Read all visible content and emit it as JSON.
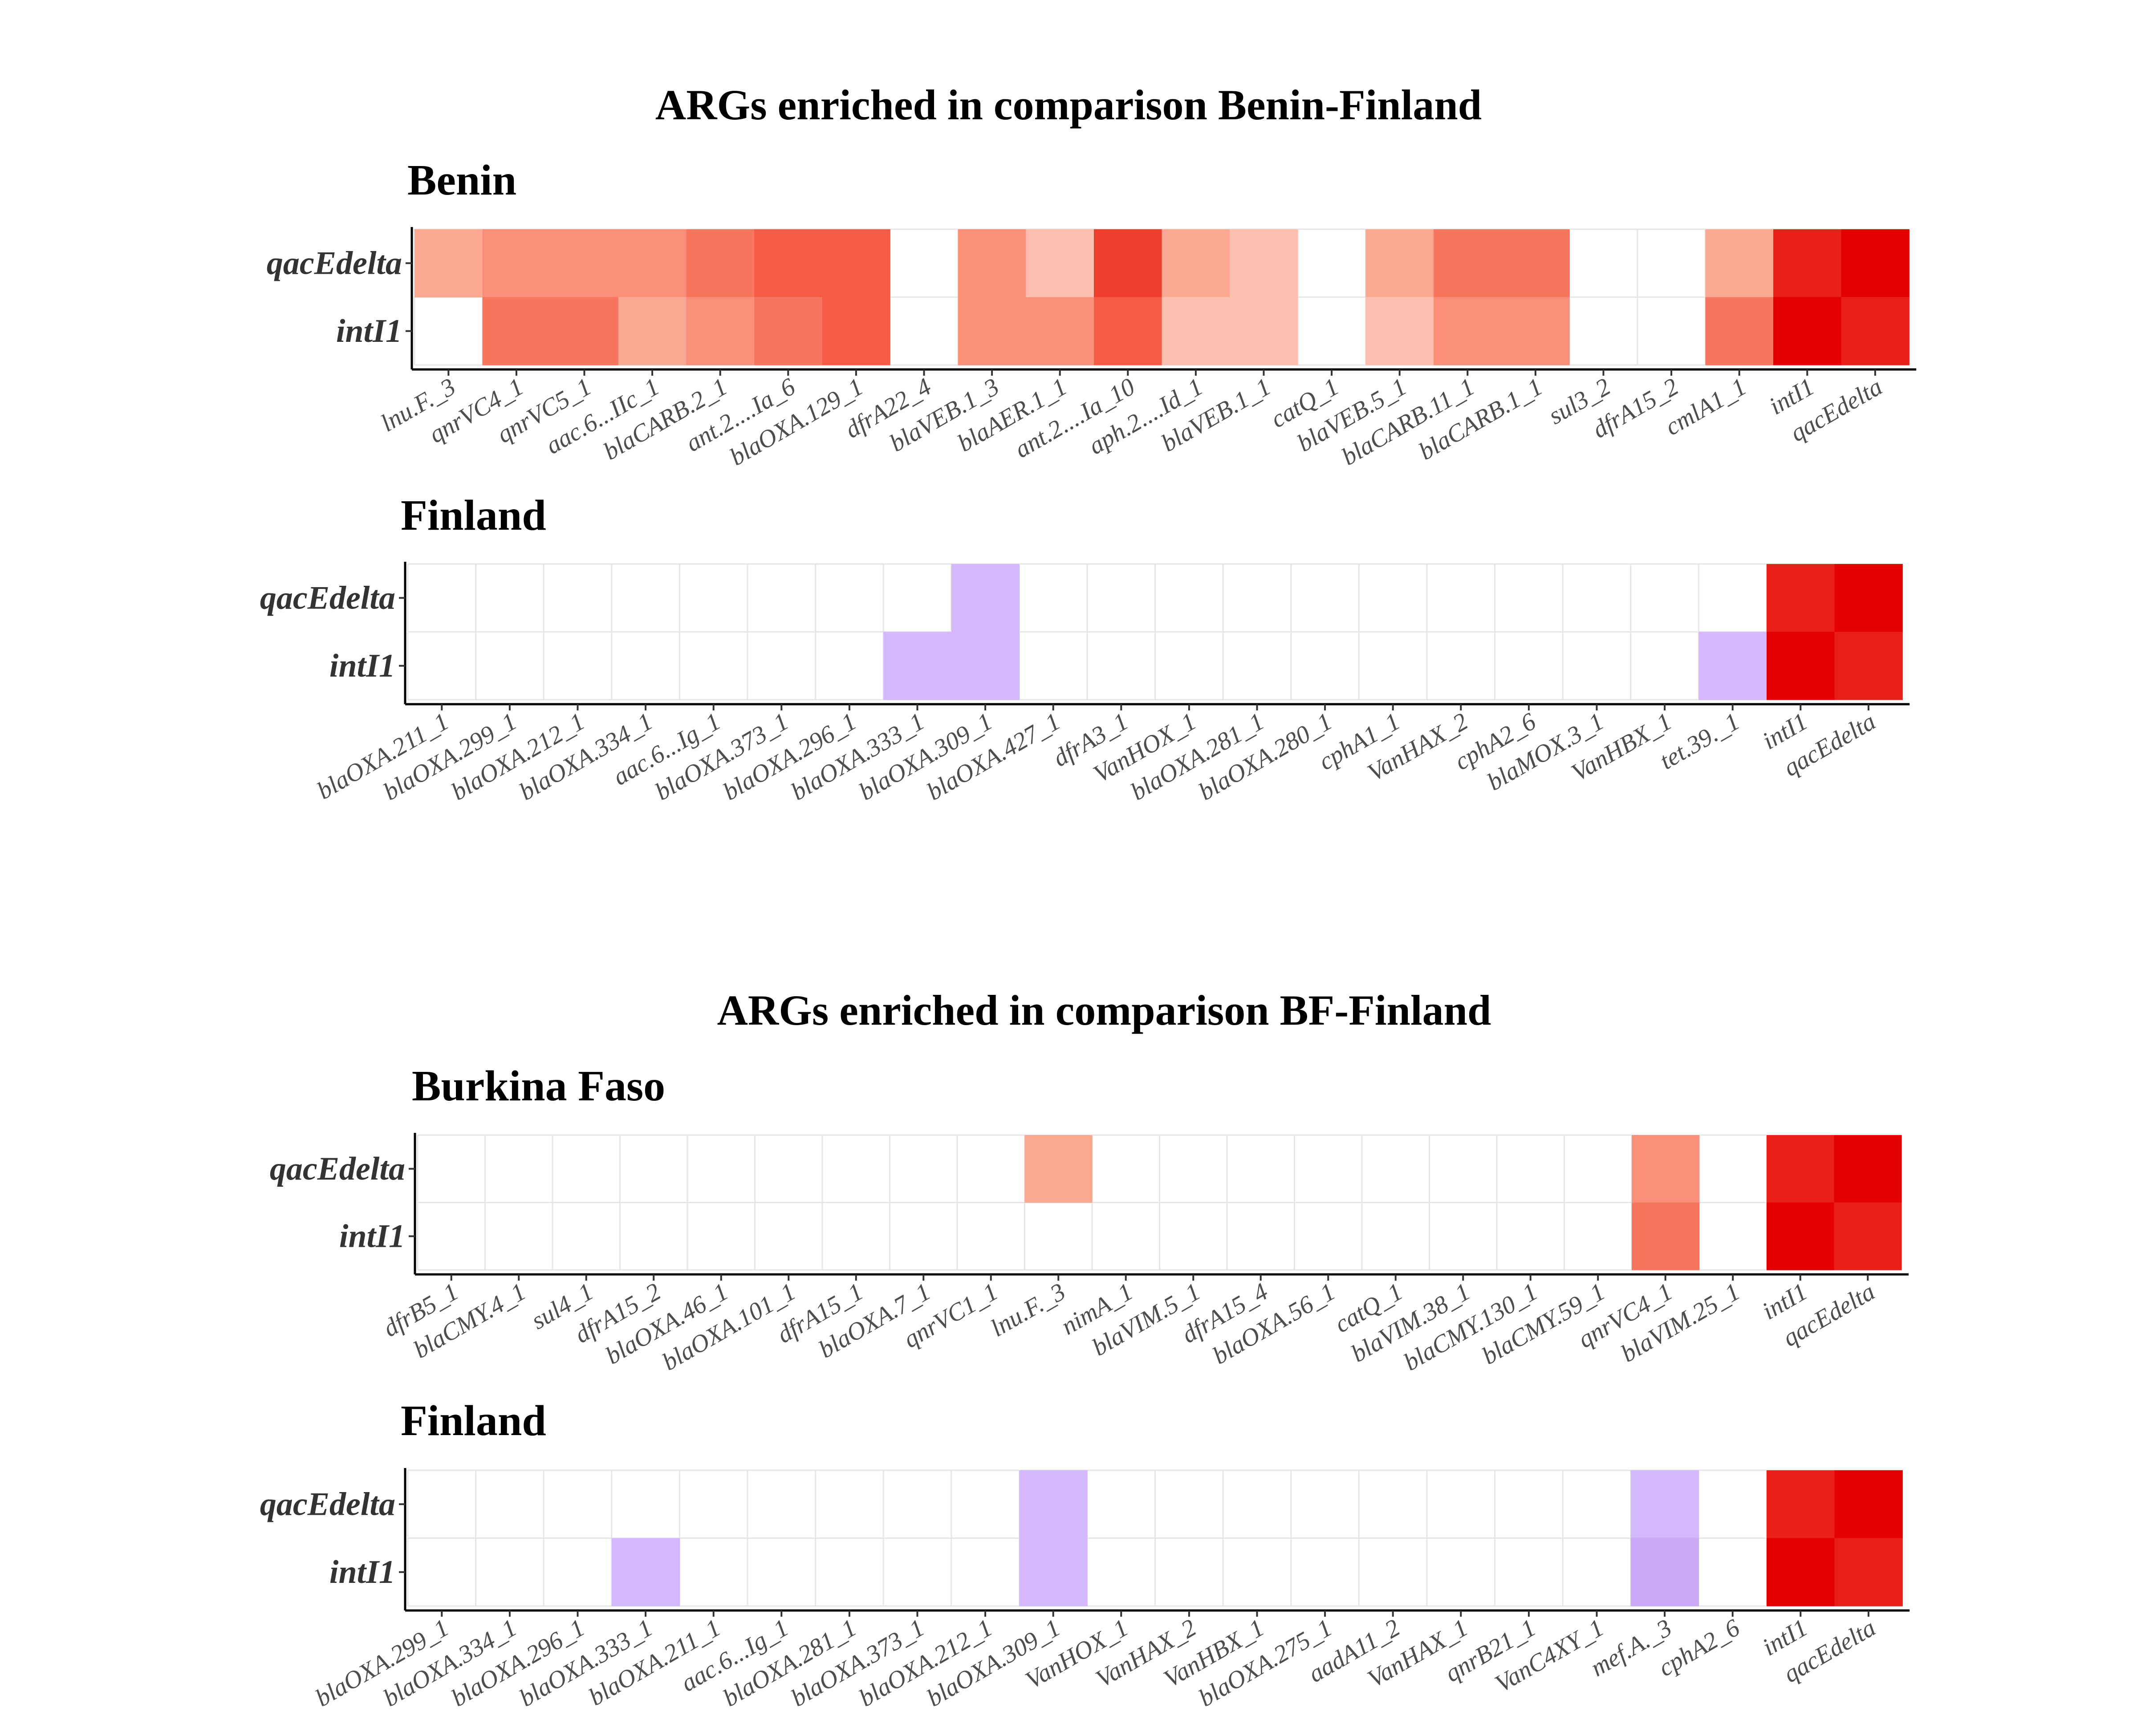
{
  "palette": {
    "red": [
      "#ffffff",
      "#fdc0b0",
      "#fba892",
      "#f98f78",
      "#f7765f",
      "#f45c45",
      "#f03e2e",
      "#ea1f1a",
      "#e40000"
    ],
    "purple": [
      "#ffffff",
      "#d4b8fb",
      "#c9a8f8"
    ]
  },
  "chart_data": [
    {
      "type": "heatmap",
      "title": "ARGs enriched in comparison Benin-Finland",
      "subtitle": "Benin",
      "palette": "red",
      "y": [
        "qacEdelta",
        "intI1"
      ],
      "x": [
        "lnu.F._3",
        "qnrVC4_1",
        "qnrVC5_1",
        "aac.6...IIc_1",
        "blaCARB.2_1",
        "ant.2....Ia_6",
        "blaOXA.129_1",
        "dfrA22_4",
        "blaVEB.1_3",
        "blaAER.1_1",
        "ant.2....Ia_10",
        "aph.2....Id_1",
        "blaVEB.1_1",
        "catQ_1",
        "blaVEB.5_1",
        "blaCARB.11_1",
        "blaCARB.1_1",
        "sul3_2",
        "dfrA15_2",
        "cmlA1_1",
        "intI1",
        "qacEdelta"
      ],
      "values": [
        [
          2,
          3,
          3,
          3,
          4,
          5,
          5,
          0,
          3,
          1,
          6,
          2,
          1,
          0,
          2,
          4,
          4,
          0,
          0,
          2,
          7,
          8
        ],
        [
          0,
          4,
          4,
          2,
          3,
          4,
          5,
          0,
          3,
          3,
          5,
          1,
          1,
          0,
          1,
          3,
          3,
          0,
          0,
          4,
          8,
          7
        ]
      ]
    },
    {
      "type": "heatmap",
      "subtitle": "Finland",
      "palette": "purple",
      "y": [
        "qacEdelta",
        "intI1"
      ],
      "x": [
        "blaOXA.211_1",
        "blaOXA.299_1",
        "blaOXA.212_1",
        "blaOXA.334_1",
        "aac.6...Ig_1",
        "blaOXA.373_1",
        "blaOXA.296_1",
        "blaOXA.333_1",
        "blaOXA.309_1",
        "blaOXA.427_1",
        "dfrA3_1",
        "VanHOX_1",
        "blaOXA.281_1",
        "blaOXA.280_1",
        "cphA1_1",
        "VanHAX_2",
        "cphA2_6",
        "blaMOX.3_1",
        "VanHBX_1",
        "tet.39._1",
        "intI1",
        "qacEdelta"
      ],
      "values": [
        [
          0,
          0,
          0,
          0,
          0,
          0,
          0,
          0,
          1,
          0,
          0,
          0,
          0,
          0,
          0,
          0,
          0,
          0,
          0,
          0,
          7,
          8
        ],
        [
          0,
          0,
          0,
          0,
          0,
          0,
          0,
          1,
          1,
          0,
          0,
          0,
          0,
          0,
          0,
          0,
          0,
          0,
          0,
          1,
          8,
          7
        ]
      ],
      "highlight": {
        "intI1": [
          7,
          8
        ],
        "qacEdelta": [
          7,
          8
        ]
      }
    },
    {
      "type": "heatmap",
      "title": "ARGs enriched in comparison BF-Finland",
      "subtitle": "Burkina Faso",
      "palette": "red",
      "y": [
        "qacEdelta",
        "intI1"
      ],
      "x": [
        "dfrB5_1",
        "blaCMY.4_1",
        "sul4_1",
        "dfrA15_2",
        "blaOXA.46_1",
        "blaOXA.101_1",
        "dfrA15_1",
        "blaOXA.7_1",
        "qnrVC1_1",
        "lnu.F._3",
        "nimA_1",
        "blaVIM.5_1",
        "dfrA15_4",
        "blaOXA.56_1",
        "catQ_1",
        "blaVIM.38_1",
        "blaCMY.130_1",
        "blaCMY.59_1",
        "qnrVC4_1",
        "blaVIM.25_1",
        "intI1",
        "qacEdelta"
      ],
      "values": [
        [
          0,
          0,
          0,
          0,
          0,
          0,
          0,
          0,
          0,
          2,
          0,
          0,
          0,
          0,
          0,
          0,
          0,
          0,
          3,
          0,
          7,
          8
        ],
        [
          0,
          0,
          0,
          0,
          0,
          0,
          0,
          0,
          0,
          0,
          0,
          0,
          0,
          0,
          0,
          0,
          0,
          0,
          4,
          0,
          8,
          7
        ]
      ]
    },
    {
      "type": "heatmap",
      "subtitle": "Finland",
      "palette": "purple",
      "y": [
        "qacEdelta",
        "intI1"
      ],
      "x": [
        "blaOXA.299_1",
        "blaOXA.334_1",
        "blaOXA.296_1",
        "blaOXA.333_1",
        "blaOXA.211_1",
        "aac.6...Ig_1",
        "blaOXA.281_1",
        "blaOXA.373_1",
        "blaOXA.212_1",
        "blaOXA.309_1",
        "VanHOX_1",
        "VanHAX_2",
        "VanHBX_1",
        "blaOXA.275_1",
        "aadA11_2",
        "VanHAX_1",
        "qnrB21_1",
        "VanC4XY_1",
        "mef.A._3",
        "cphA2_6",
        "intI1",
        "qacEdelta"
      ],
      "values": [
        [
          0,
          0,
          0,
          0,
          0,
          0,
          0,
          0,
          0,
          1,
          0,
          0,
          0,
          0,
          0,
          0,
          0,
          0,
          1,
          0,
          7,
          8
        ],
        [
          0,
          0,
          0,
          1,
          0,
          0,
          0,
          0,
          0,
          1,
          0,
          0,
          0,
          0,
          0,
          0,
          0,
          0,
          2,
          0,
          8,
          7
        ]
      ],
      "highlight": {
        "intI1": [
          7,
          8
        ],
        "qacEdelta": [
          7,
          8
        ]
      }
    }
  ]
}
